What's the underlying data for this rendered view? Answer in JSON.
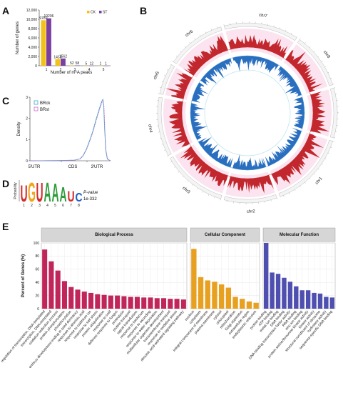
{
  "panels": {
    "a": "A",
    "b": "B",
    "c": "C",
    "d": "D",
    "e": "E"
  },
  "chart_data": [
    {
      "id": "A",
      "type": "bar",
      "categories": [
        "1",
        "2",
        "3",
        "4",
        "5"
      ],
      "series": [
        {
          "name": "CK",
          "color": "#f2c21b",
          "values": [
            9789,
            1419,
            52,
            5,
            1
          ]
        },
        {
          "name": "ST",
          "color": "#7b3fa0",
          "values": [
            10206,
            1562,
            58,
            12,
            1
          ]
        }
      ],
      "bar_labels": [
        [
          "9789",
          "10206"
        ],
        [
          "1419",
          "1562"
        ],
        [
          "52",
          "58"
        ],
        [
          "5",
          "12"
        ],
        [
          "1",
          "1"
        ]
      ],
      "ylabel": "Number of genes",
      "xlabel": "Number of m⁶A peaks",
      "ylim": [
        0,
        12000
      ],
      "yticks": [
        "0",
        "2,000",
        "4,000",
        "6,000",
        "8,000",
        "10,000",
        "12,000"
      ],
      "yticks_values": [
        0,
        2000,
        4000,
        6000,
        8000,
        10000,
        12000
      ],
      "legend_position": "top-right"
    },
    {
      "id": "B",
      "type": "circos",
      "chromosomes": [
        "chr7",
        "chr8",
        "chr9",
        "chr1",
        "chr2",
        "chr3",
        "chr4",
        "chr5",
        "chr6"
      ],
      "outer_track_color": "#c1272d",
      "inner_track_color": "#2a6fbf"
    },
    {
      "id": "C",
      "type": "line",
      "ylabel": "Density",
      "ylim": [
        0,
        3
      ],
      "yticks": [
        "0",
        "1",
        "2",
        "3"
      ],
      "regions": [
        "5'UTR",
        "CDS",
        "3'UTR"
      ],
      "series": [
        {
          "name": "BRck",
          "color": "#39a9c9"
        },
        {
          "name": "BRst",
          "color": "#c86ac8"
        }
      ]
    },
    {
      "id": "D",
      "type": "motif",
      "ylabel": "Probability",
      "letters": [
        "U",
        "G",
        "U",
        "A",
        "A",
        "A",
        "U",
        "C"
      ],
      "positions": [
        "1",
        "2",
        "3",
        "4",
        "5",
        "6",
        "7",
        "8"
      ],
      "pvalue_label": "P-value",
      "pvalue": "1e-332"
    },
    {
      "id": "E",
      "type": "bar",
      "ylabel": "Percent of Genes (%)",
      "ylim": [
        0,
        100
      ],
      "yticks": [
        "0",
        "20",
        "40",
        "60",
        "80",
        "100"
      ],
      "yticks_values": [
        0,
        20,
        40,
        60,
        80,
        100
      ],
      "facets": [
        {
          "name": "Biological Process",
          "color": "#c0265a",
          "categories": [
            "regulation of transcription, DNA-templated",
            "transcription, DNA-templated",
            "oxidation-reduction process",
            "protein phosphorylation",
            "phosphorylation",
            "embryo development ending in seed dormancy",
            "response to abscisic acid",
            "response to cadmium ion",
            "response to salt stress",
            "protein ubiquitination",
            "response to cold",
            "defense response to fungus",
            "proteolysis",
            "protein transport",
            "signal transduction",
            "response to bacterium",
            "response to wounding",
            "response to water deprivation",
            "multicellular organism development",
            "transmembrane transport",
            "response to oxidative stress",
            "abscisic acid-activated signaling pathway"
          ],
          "values": [
            90,
            72,
            58,
            42,
            33,
            29,
            26,
            24,
            22,
            21,
            20,
            20,
            19,
            18,
            18,
            17,
            17,
            16,
            16,
            15,
            15,
            14
          ]
        },
        {
          "name": "Cellular Component",
          "color": "#e8a021",
          "categories": [
            "nucleus",
            "cytoplasm",
            "integral component of membrane",
            "plasma membrane",
            "cytosol",
            "chloroplast",
            "mitochondrion",
            "Golgi apparatus",
            "extracellular region",
            "endoplasmic reticulum"
          ],
          "values": [
            91,
            48,
            43,
            41,
            37,
            32,
            18,
            15,
            11,
            9
          ]
        },
        {
          "name": "Molecular Function",
          "color": "#4f4fb0",
          "categories": [
            "protein binding",
            "ATP binding",
            "metal ion binding",
            "DNA binding",
            "DNA-binding transcription factor activity",
            "RNA binding",
            "zinc ion binding",
            "protein serine/threonine kinase activity",
            "kinase activity",
            "structural constituent of ribosome",
            "hydrolase activity",
            "sequence-specific DNA binding"
          ],
          "values": [
            100,
            55,
            53,
            47,
            41,
            34,
            28,
            28,
            24,
            23,
            18,
            17
          ]
        }
      ]
    }
  ]
}
